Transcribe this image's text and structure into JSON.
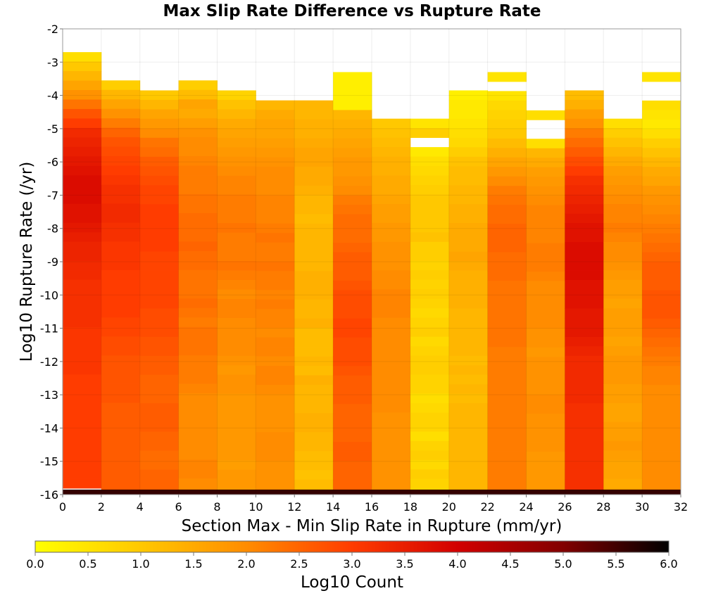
{
  "chart_data": {
    "type": "heatmap",
    "title": "Max Slip Rate Difference vs Rupture Rate",
    "xlabel": "Section Max - Min Slip Rate in Rupture (mm/yr)",
    "ylabel": "Log10 Rupture Rate (/yr)",
    "xlim": [
      0,
      32
    ],
    "ylim": [
      -16,
      -2
    ],
    "x_ticks": [
      "0",
      "2",
      "4",
      "6",
      "8",
      "10",
      "12",
      "14",
      "16",
      "18",
      "20",
      "22",
      "24",
      "26",
      "28",
      "30",
      "32"
    ],
    "y_ticks": [
      "-2",
      "-3",
      "-4",
      "-5",
      "-6",
      "-7",
      "-8",
      "-9",
      "-10",
      "-11",
      "-12",
      "-13",
      "-14",
      "-15",
      "-16"
    ],
    "grid": true,
    "x_bin_width": 2,
    "y_bin_height": 0.285,
    "colorbar": {
      "label": "Log10 Count",
      "range": [
        0,
        6
      ],
      "ticks": [
        "0.0",
        "0.5",
        "1.0",
        "1.5",
        "2.0",
        "2.5",
        "3.0",
        "3.5",
        "4.0",
        "4.5",
        "5.0",
        "5.5",
        "6.0"
      ]
    },
    "columns": [
      {
        "x": 0,
        "top": -2.7,
        "vals": [
          0.6,
          1.0,
          1.3,
          1.6,
          1.9,
          2.3,
          2.7,
          3.0,
          3.3,
          3.4,
          3.5,
          3.6,
          3.7,
          3.8,
          3.8,
          3.8,
          3.7,
          3.7,
          3.6,
          3.5,
          3.4,
          3.4,
          3.3,
          3.3,
          3.2,
          3.2,
          3.2,
          3.2,
          3.2,
          3.1,
          3.1,
          3.1,
          3.1,
          3.1,
          3.0,
          3.0,
          3.0,
          3.0,
          3.0,
          3.0,
          3.0,
          3.0,
          3.0,
          3.0,
          3.0,
          3.0
        ]
      },
      {
        "x": 2,
        "top": -3.55,
        "vals": [
          0.9,
          1.3,
          1.6,
          1.9,
          2.2,
          2.5,
          2.7,
          2.8,
          2.9,
          3.0,
          3.1,
          3.2,
          3.2,
          3.3,
          3.3,
          3.2,
          3.2,
          3.1,
          3.1,
          3.1,
          3.0,
          3.0,
          3.0,
          3.0,
          3.0,
          2.9,
          2.9,
          2.8,
          2.8,
          2.7,
          2.7,
          2.7,
          2.7,
          2.7,
          2.6,
          2.6,
          2.6,
          2.6,
          2.6,
          2.6,
          2.6,
          2.6,
          2.6,
          2.6,
          2.6
        ]
      },
      {
        "x": 4,
        "top": -3.85,
        "vals": [
          1.0,
          1.3,
          1.6,
          1.8,
          2.0,
          2.3,
          2.4,
          2.6,
          2.7,
          2.8,
          2.9,
          2.9,
          3.0,
          3.0,
          3.0,
          3.0,
          3.0,
          2.9,
          2.9,
          2.9,
          2.9,
          2.9,
          2.9,
          2.8,
          2.8,
          2.8,
          2.7,
          2.7,
          2.6,
          2.6,
          2.5,
          2.5,
          2.5,
          2.6,
          2.6,
          2.6,
          2.5,
          2.5,
          2.4,
          2.4,
          2.5,
          2.5,
          2.5,
          2.5
        ]
      },
      {
        "x": 6,
        "top": -3.55,
        "vals": [
          0.9,
          1.2,
          1.6,
          1.5,
          1.7,
          1.9,
          2.0,
          2.0,
          2.1,
          2.2,
          2.2,
          2.2,
          2.3,
          2.3,
          2.4,
          2.4,
          2.4,
          2.5,
          2.4,
          2.4,
          2.3,
          2.3,
          2.3,
          2.4,
          2.3,
          2.2,
          2.3,
          2.3,
          2.3,
          2.2,
          2.2,
          2.2,
          2.1,
          2.0,
          2.0,
          2.0,
          2.0,
          2.0,
          2.0,
          2.0,
          2.1,
          2.1,
          2.0,
          2.0,
          2.1
        ]
      },
      {
        "x": 8,
        "top": -3.85,
        "vals": [
          0.8,
          1.1,
          1.3,
          1.5,
          1.6,
          1.7,
          1.8,
          1.9,
          2.0,
          2.1,
          2.1,
          2.2,
          2.2,
          2.2,
          2.3,
          2.2,
          2.2,
          2.2,
          2.3,
          2.2,
          2.1,
          2.0,
          2.1,
          2.1,
          2.0,
          2.0,
          2.0,
          2.0,
          1.9,
          1.8,
          1.9,
          1.9,
          1.8,
          1.8,
          1.8,
          1.8,
          1.8,
          1.8,
          1.8,
          1.7,
          1.8,
          1.8,
          1.7,
          1.7
        ]
      },
      {
        "x": 10,
        "top": -4.15,
        "vals": [
          1.3,
          1.5,
          1.6,
          1.6,
          1.7,
          1.8,
          1.9,
          2.0,
          2.0,
          2.0,
          2.1,
          2.1,
          2.1,
          2.2,
          2.3,
          2.2,
          2.2,
          2.3,
          2.2,
          2.2,
          2.1,
          2.2,
          2.1,
          2.1,
          2.0,
          2.1,
          2.1,
          2.0,
          2.1,
          2.1,
          2.0,
          1.9,
          1.9,
          1.9,
          1.9,
          2.0,
          2.0,
          2.0,
          1.9,
          1.9,
          1.9,
          1.9,
          1.8,
          1.8
        ]
      },
      {
        "x": 12,
        "top": -4.15,
        "vals": [
          1.3,
          1.3,
          1.4,
          1.4,
          1.5,
          1.6,
          1.6,
          1.5,
          1.5,
          1.4,
          1.3,
          1.3,
          1.2,
          1.3,
          1.3,
          1.3,
          1.3,
          1.3,
          1.4,
          1.4,
          1.4,
          1.3,
          1.3,
          1.4,
          1.2,
          1.2,
          1.2,
          1.3,
          1.2,
          1.4,
          1.3,
          1.3,
          1.3,
          1.4,
          1.4,
          1.3,
          1.3,
          1.2,
          1.2,
          1.1,
          1.2,
          1.2,
          1.1,
          1.1
        ]
      },
      {
        "x": 14,
        "top": -3.3,
        "vals": [
          0.3,
          0.3,
          0.3,
          0.3,
          1.3,
          1.4,
          1.5,
          1.6,
          1.7,
          1.8,
          1.8,
          1.9,
          2.0,
          2.2,
          2.3,
          2.4,
          2.4,
          2.4,
          2.5,
          2.6,
          2.6,
          2.6,
          2.7,
          2.8,
          2.8,
          2.8,
          2.9,
          2.9,
          2.8,
          2.8,
          2.8,
          2.7,
          2.6,
          2.6,
          2.6,
          2.5,
          2.5,
          2.5,
          2.5,
          2.6,
          2.6,
          2.5,
          2.5,
          2.5,
          2.5,
          2.5,
          2.5,
          2.5
        ]
      },
      {
        "x": 16,
        "top": -4.7,
        "vals": [
          1.0,
          1.1,
          1.2,
          1.3,
          1.4,
          1.4,
          1.5,
          1.5,
          1.6,
          1.7,
          1.7,
          1.8,
          1.8,
          1.9,
          1.9,
          1.9,
          2.0,
          2.0,
          2.1,
          2.1,
          2.1,
          2.0,
          2.0,
          2.0,
          2.0,
          2.0,
          2.0,
          2.0,
          2.0,
          2.0,
          2.0,
          1.9,
          1.9,
          1.9,
          1.9,
          1.9,
          1.9,
          1.9,
          1.9,
          1.9,
          1.9,
          1.9
        ]
      },
      {
        "x": 18,
        "top": -4.7,
        "vals": [
          0.5,
          0.9,
          -1,
          0.4,
          0.6,
          0.7,
          0.8,
          0.9,
          1.0,
          1.0,
          1.0,
          1.0,
          1.1,
          0.9,
          0.9,
          0.8,
          0.9,
          0.8,
          0.9,
          0.8,
          0.7,
          0.8,
          0.9,
          0.7,
          0.8,
          0.9,
          0.9,
          0.8,
          0.8,
          0.6,
          0.7,
          0.8,
          0.8,
          0.6,
          0.8,
          0.9,
          0.7,
          0.9,
          0.8,
          0.7,
          0.7,
          0.8
        ]
      },
      {
        "x": 20,
        "top": -3.85,
        "vals": [
          0.3,
          0.4,
          0.4,
          0.5,
          0.6,
          0.7,
          0.9,
          1.1,
          1.2,
          1.2,
          1.3,
          1.3,
          1.4,
          1.4,
          1.5,
          1.5,
          1.5,
          1.6,
          1.5,
          1.4,
          1.4,
          1.4,
          1.4,
          1.3,
          1.3,
          1.3,
          1.3,
          1.3,
          1.2,
          1.3,
          1.2,
          1.3,
          1.2,
          1.3,
          1.3,
          1.3,
          1.3,
          1.3,
          1.3,
          1.3,
          1.3,
          1.3,
          1.3,
          1.3,
          1.3
        ]
      },
      {
        "x": 22,
        "top": -3.3,
        "vals": [
          0.5,
          -1,
          0.5,
          0.7,
          0.8,
          0.9,
          1.0,
          1.2,
          1.4,
          1.6,
          1.8,
          2.0,
          2.2,
          2.3,
          2.4,
          2.4,
          2.5,
          2.5,
          2.5,
          2.4,
          2.4,
          2.4,
          2.3,
          2.3,
          2.3,
          2.3,
          2.3,
          2.3,
          2.3,
          2.2,
          2.2,
          2.2,
          2.2,
          2.2,
          2.2,
          2.2,
          2.2,
          2.2,
          2.2,
          2.2,
          2.2,
          2.2,
          2.2,
          2.2,
          2.2,
          2.2,
          2.2,
          2.2
        ]
      },
      {
        "x": 24,
        "top": -4.45,
        "vals": [
          0.6,
          -1,
          -1,
          0.6,
          1.3,
          1.5,
          1.7,
          1.8,
          1.9,
          2.0,
          2.1,
          2.1,
          2.1,
          2.1,
          2.2,
          2.2,
          2.2,
          2.1,
          2.0,
          2.0,
          2.0,
          2.0,
          2.0,
          1.9,
          1.9,
          1.8,
          1.9,
          1.9,
          1.9,
          1.9,
          2.0,
          2.0,
          1.9,
          1.9,
          1.9,
          1.9,
          1.8,
          1.8,
          1.8,
          1.8,
          1.8
        ]
      },
      {
        "x": 26,
        "top": -3.85,
        "vals": [
          1.2,
          1.4,
          1.7,
          1.9,
          2.2,
          2.4,
          2.6,
          2.8,
          3.0,
          3.2,
          3.3,
          3.4,
          3.5,
          3.6,
          3.7,
          3.7,
          3.8,
          3.8,
          3.8,
          3.8,
          3.7,
          3.7,
          3.7,
          3.6,
          3.6,
          3.6,
          3.5,
          3.4,
          3.3,
          3.3,
          3.3,
          3.3,
          3.3,
          3.2,
          3.2,
          3.2,
          3.2,
          3.2,
          3.2,
          3.2,
          3.2,
          3.2,
          3.2,
          3.2
        ]
      },
      {
        "x": 28,
        "top": -4.7,
        "vals": [
          0.6,
          0.9,
          1.1,
          1.3,
          1.5,
          1.7,
          1.8,
          1.9,
          2.0,
          2.1,
          2.1,
          2.2,
          2.1,
          2.0,
          2.0,
          1.9,
          1.8,
          1.7,
          1.7,
          1.6,
          1.7,
          1.7,
          1.7,
          1.6,
          1.7,
          1.8,
          1.8,
          1.8,
          1.7,
          1.7,
          1.6,
          1.6,
          1.7,
          1.7,
          1.8,
          1.7,
          1.6,
          1.6,
          1.5,
          1.6,
          1.6
        ]
      },
      {
        "x": 30,
        "top": -3.3,
        "vals": [
          0.5,
          -1,
          -1,
          0.6,
          0.5,
          0.4,
          0.6,
          0.9,
          1.1,
          1.3,
          1.5,
          1.6,
          1.8,
          1.9,
          2.0,
          2.1,
          2.2,
          2.3,
          2.4,
          2.5,
          2.6,
          2.6,
          2.6,
          2.7,
          2.7,
          2.7,
          2.6,
          2.5,
          2.4,
          2.3,
          2.2,
          2.1,
          2.1,
          2.0,
          2.0,
          2.0,
          2.0,
          2.0,
          2.0,
          2.0,
          2.0,
          2.0,
          2.0,
          2.0,
          2.0,
          2.0,
          2.0,
          2.0
        ]
      }
    ],
    "bottom_row": {
      "y_from": -16,
      "y_to": -15.85,
      "value": 5.6
    }
  }
}
